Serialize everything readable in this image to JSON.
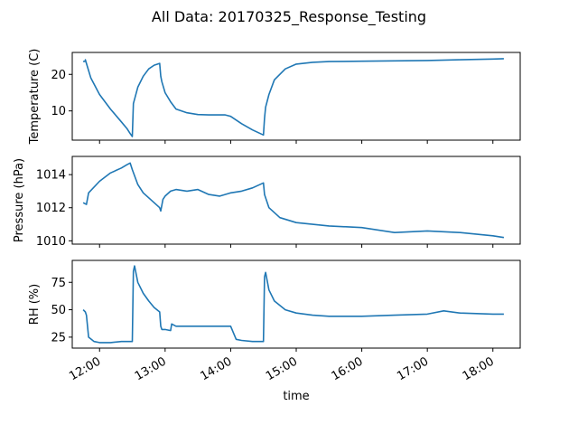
{
  "figure": {
    "title": "All Data: 20170325_Response_Testing",
    "xlabel": "time",
    "line_color": "#1f77b4"
  },
  "chart_data": [
    {
      "type": "line",
      "ylabel": "Temperature (C)",
      "xlim": [
        "11:35",
        "18:25"
      ],
      "ylim": [
        2.0,
        26.0
      ],
      "yticks": [
        10,
        20
      ],
      "grid": false,
      "x": [
        "11:45",
        "11:47",
        "11:47",
        "11:48",
        "11:52",
        "12:00",
        "12:10",
        "12:20",
        "12:25",
        "12:28",
        "12:30",
        "12:31",
        "12:35",
        "12:40",
        "12:45",
        "12:50",
        "12:55",
        "12:56",
        "12:57",
        "13:00",
        "13:05",
        "13:10",
        "13:20",
        "13:30",
        "13:40",
        "13:50",
        "13:55",
        "14:00",
        "14:10",
        "14:20",
        "14:30",
        "14:31",
        "14:32",
        "14:35",
        "14:40",
        "14:50",
        "15:00",
        "15:15",
        "15:30",
        "16:00",
        "16:30",
        "17:00",
        "17:30",
        "18:00",
        "18:10"
      ],
      "y": [
        23.5,
        23.6,
        24.0,
        23.0,
        19.0,
        14.5,
        10.5,
        7.0,
        5.2,
        3.8,
        3.0,
        12.0,
        16.5,
        19.5,
        21.5,
        22.5,
        23.0,
        19.5,
        18.0,
        15.0,
        12.5,
        10.5,
        9.5,
        9.0,
        8.9,
        8.9,
        8.9,
        8.5,
        6.5,
        4.8,
        3.4,
        8.0,
        11.0,
        14.5,
        18.5,
        21.5,
        22.8,
        23.3,
        23.5,
        23.6,
        23.7,
        23.8,
        24.0,
        24.2,
        24.3
      ]
    },
    {
      "type": "line",
      "ylabel": "Pressure (hPa)",
      "xlim": [
        "11:35",
        "18:25"
      ],
      "ylim": [
        1009.8,
        1015.1
      ],
      "yticks": [
        1010,
        1012,
        1014
      ],
      "grid": false,
      "x": [
        "11:45",
        "11:48",
        "11:50",
        "12:00",
        "12:10",
        "12:20",
        "12:25",
        "12:28",
        "12:30",
        "12:35",
        "12:40",
        "12:50",
        "12:55",
        "12:56",
        "12:58",
        "13:00",
        "13:05",
        "13:10",
        "13:20",
        "13:30",
        "13:40",
        "13:50",
        "14:00",
        "14:10",
        "14:20",
        "14:30",
        "14:31",
        "14:35",
        "14:45",
        "15:00",
        "15:30",
        "16:00",
        "16:30",
        "17:00",
        "17:30",
        "18:00",
        "18:10"
      ],
      "y": [
        1012.3,
        1012.2,
        1012.9,
        1013.6,
        1014.1,
        1014.4,
        1014.6,
        1014.7,
        1014.3,
        1013.4,
        1012.9,
        1012.3,
        1012.0,
        1011.8,
        1012.5,
        1012.7,
        1013.0,
        1013.1,
        1013.0,
        1013.1,
        1012.8,
        1012.7,
        1012.9,
        1013.0,
        1013.2,
        1013.5,
        1012.8,
        1012.0,
        1011.4,
        1011.1,
        1010.9,
        1010.8,
        1010.5,
        1010.6,
        1010.5,
        1010.3,
        1010.2
      ]
    },
    {
      "type": "line",
      "ylabel": "RH (%)",
      "xlim": [
        "11:35",
        "18:25"
      ],
      "ylim": [
        15,
        95
      ],
      "yticks": [
        25,
        50,
        75
      ],
      "grid": false,
      "x": [
        "11:45",
        "11:47",
        "11:48",
        "11:50",
        "11:55",
        "12:00",
        "12:10",
        "12:20",
        "12:25",
        "12:30",
        "12:31",
        "12:32",
        "12:35",
        "12:40",
        "12:45",
        "12:50",
        "12:55",
        "12:56",
        "12:57",
        "13:00",
        "13:05",
        "13:06",
        "13:10",
        "13:30",
        "13:50",
        "14:00",
        "14:05",
        "14:10",
        "14:20",
        "14:30",
        "14:31",
        "14:32",
        "14:35",
        "14:40",
        "14:50",
        "15:00",
        "15:15",
        "15:30",
        "16:00",
        "16:30",
        "17:00",
        "17:15",
        "17:30",
        "18:00",
        "18:10"
      ],
      "y": [
        50,
        48,
        45,
        25,
        21,
        20,
        20,
        21,
        21,
        21,
        85,
        90,
        75,
        65,
        58,
        52,
        48,
        35,
        32,
        32,
        31,
        37,
        35,
        35,
        35,
        35,
        23,
        22,
        21,
        21,
        80,
        84,
        68,
        58,
        50,
        47,
        45,
        44,
        44,
        45,
        46,
        49,
        47,
        46,
        46
      ]
    }
  ],
  "x_ticks": [
    "12:00",
    "13:00",
    "14:00",
    "15:00",
    "16:00",
    "17:00",
    "18:00"
  ]
}
